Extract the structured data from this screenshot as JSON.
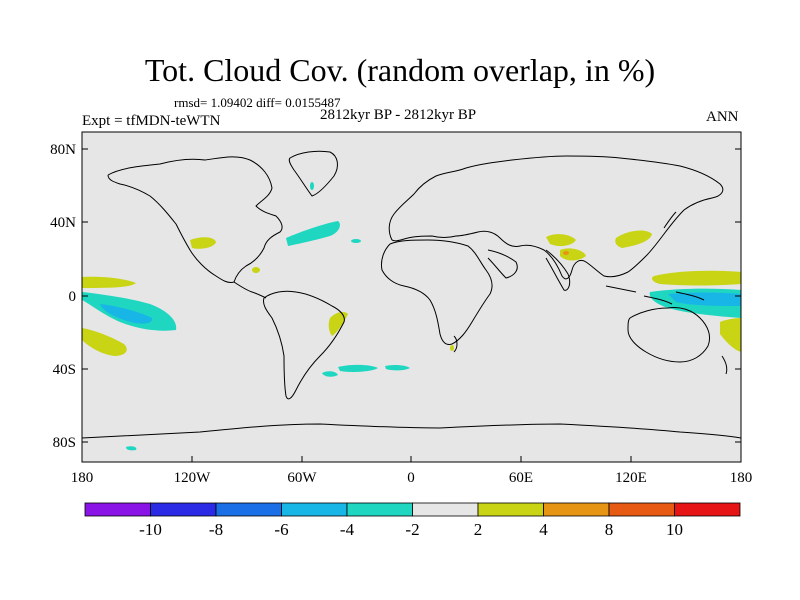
{
  "title": "Tot. Cloud Cov. (random overlap, in %)",
  "stats": "rmsd= 1.09402 diff= 0.0155487",
  "expt": "Expt = tfMDN-teWTN",
  "period": "2812kyr BP - 2812kyr BP",
  "season": "ANN",
  "lat_ticks": [
    "80N",
    "40N",
    "0",
    "40S",
    "80S"
  ],
  "lon_ticks": [
    "180",
    "120W",
    "60W",
    "0",
    "60E",
    "120E",
    "180"
  ],
  "colorbar": {
    "labels": [
      "-10",
      "-8",
      "-6",
      "-4",
      "-2",
      "2",
      "4",
      "8",
      "10"
    ],
    "colors": [
      "#8a14e6",
      "#2b2be6",
      "#1a6ee6",
      "#18b6e6",
      "#1fd6c0",
      "#e6e6e6",
      "#c8d414",
      "#e69414",
      "#e65a14",
      "#e61414"
    ]
  },
  "map_colors": {
    "background": "#e6e6e6",
    "negative": "#1fd6c0",
    "negative_strong": "#18b6e6",
    "positive": "#c8d414",
    "positive_strong": "#e69414"
  }
}
